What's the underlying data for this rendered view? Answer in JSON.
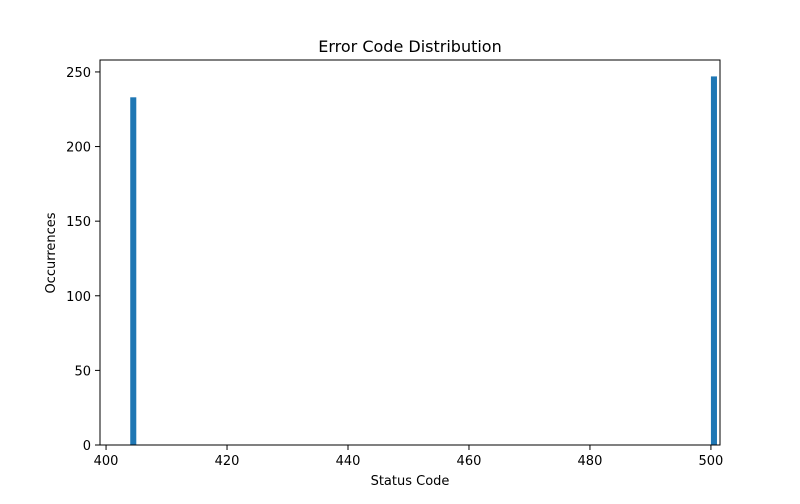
{
  "chart_data": {
    "type": "bar",
    "title": "Error Code Distribution",
    "xlabel": "Status Code",
    "ylabel": "Occurrences",
    "xlim": [
      399,
      501.5
    ],
    "ylim": [
      0,
      258
    ],
    "xticks": [
      400,
      420,
      440,
      460,
      480,
      500
    ],
    "yticks": [
      0,
      50,
      100,
      150,
      200,
      250
    ],
    "bar_width": 1,
    "bars": [
      {
        "x": 404,
        "value": 233
      },
      {
        "x": 500,
        "value": 247
      }
    ],
    "grid": false,
    "colors": {
      "bar": "#1f77b4",
      "axis": "#000000"
    }
  }
}
